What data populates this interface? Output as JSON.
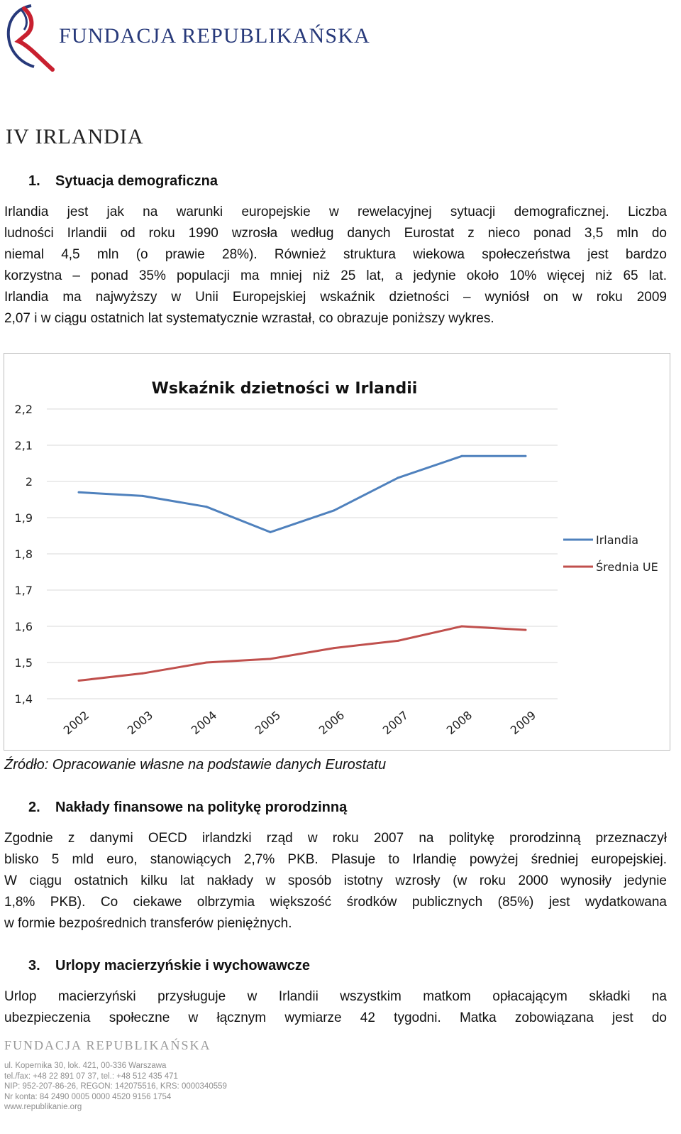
{
  "header": {
    "logo_text": "FUNDACJA REPUBLIKAŃSKA"
  },
  "chapter": {
    "title": "IV IRLANDIA"
  },
  "sections": [
    {
      "number": "1.",
      "title": "Sytuacja demograficzna",
      "lines": [
        "Irlandia jest jak na warunki europejskie w rewelacyjnej sytuacji demograficznej.   Liczba",
        "ludności Irlandii od roku 1990 wzrosła według danych Eurostat z nieco ponad 3,5 mln do",
        "niemal 4,5 mln (o prawie 28%).   Również struktura wiekowa społeczeństwa jest bardzo",
        "korzystna – ponad 35% populacji ma mniej niż 25 lat, a jedynie około 10%  więcej niż 65 lat.",
        "Irlandia ma najwyższy w Unii Europejskiej wskaźnik dzietności – wyniósł on w roku 2009",
        "2,07 i w ciągu ostatnich lat systematycznie wzrastał, co obrazuje poniższy wykres."
      ]
    },
    {
      "number": "2.",
      "title": "Nakłady finansowe na politykę prorodzinną",
      "lines": [
        "Zgodnie z danymi OECD irlandzki rząd w roku 2007 na politykę prorodzinną przeznaczył",
        "blisko 5 mld euro, stanowiących 2,7% PKB. Plasuje to Irlandię powyżej średniej europejskiej.",
        "W ciągu ostatnich kilku lat nakłady w sposób istotny wzrosły (w roku 2000 wynosiły jedynie",
        "1,8% PKB).  Co ciekawe olbrzymia większość środków publicznych (85%) jest wydatkowana",
        "w formie bezpośrednich transferów pieniężnych."
      ]
    },
    {
      "number": "3.",
      "title": "Urlopy macierzyńskie i wychowawcze",
      "lines": [
        "Urlop macierzyński przysługuje w Irlandii wszystkim matkom opłacającym składki na",
        "ubezpieczenia społeczne w łącznym wymiarze 42 tygodni. Matka zobowiązana jest do"
      ]
    }
  ],
  "chart_data": {
    "type": "line",
    "title": "Wskaźnik dzietności w Irlandii",
    "categories": [
      "2002",
      "2003",
      "2004",
      "2005",
      "2006",
      "2007",
      "2008",
      "2009"
    ],
    "series": [
      {
        "name": "Irlandia",
        "color": "#4f81bd",
        "values": [
          1.97,
          1.96,
          1.93,
          1.86,
          1.92,
          2.01,
          2.07,
          2.07
        ]
      },
      {
        "name": "Średnia UE",
        "color": "#c0504d",
        "values": [
          1.45,
          1.47,
          1.5,
          1.51,
          1.54,
          1.56,
          1.6,
          1.59
        ]
      }
    ],
    "ylim": [
      1.4,
      2.2
    ],
    "yticks": [
      "1,4",
      "1,5",
      "1,6",
      "1,7",
      "1,8",
      "1,9",
      "2",
      "2,1",
      "2,2"
    ],
    "grid": true,
    "legend_position": "right"
  },
  "source_note": "Źródło:  Opracowanie własne na podstawie danych Eurostatu",
  "footer": {
    "brand": "FUNDACJA REPUBLIKAŃSKA",
    "contact_lines": [
      "ul. Kopernika 30, lok. 421, 00-336 Warszawa",
      "tel./fax: +48 22 891 07 37, tel.: +48 512 435 471",
      "NIP: 952-207-86-26, REGON: 142075516, KRS: 0000340559",
      "Nr konta: 84 2490 0005 0000 4520 9156 1754",
      "www.republikanie.org"
    ]
  },
  "colors": {
    "brand_blue": "#27397a",
    "brand_red": "#c8202f",
    "irlandia_line": "#4f81bd",
    "eu_line": "#c0504d"
  }
}
